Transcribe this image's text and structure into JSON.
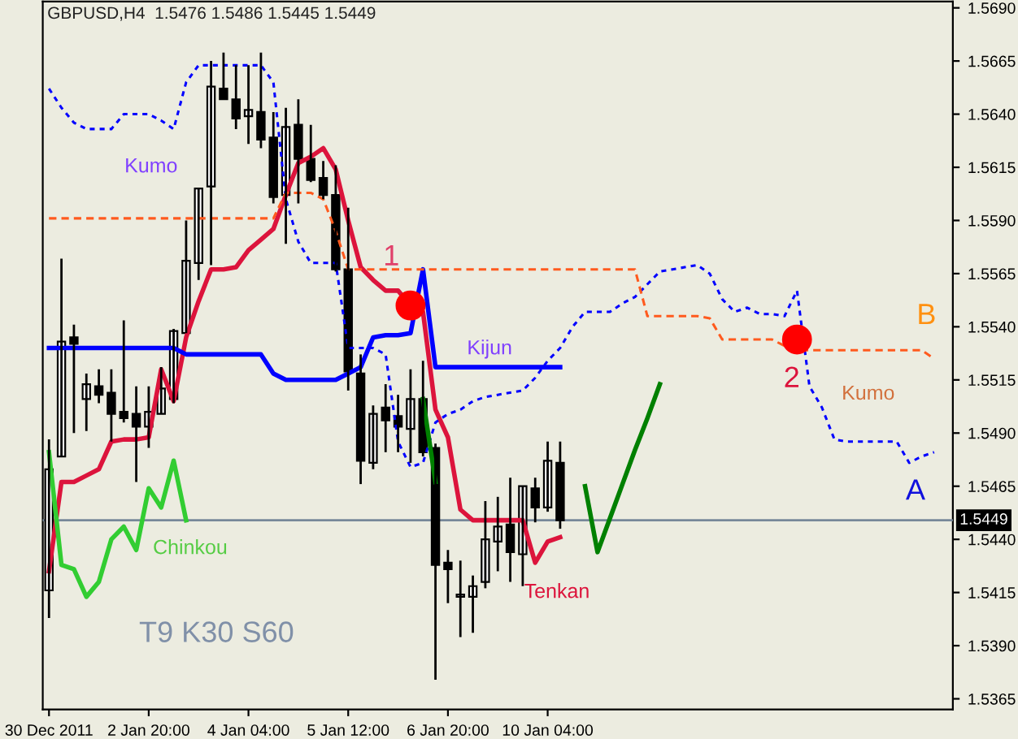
{
  "chart_data": {
    "type": "candlestick",
    "title": "GBPUSD,H4  1.5476 1.5486 1.5445 1.5449",
    "categories": [
      "30 Dec 2011",
      null,
      null,
      null,
      null,
      null,
      null,
      null,
      "2 Jan 20:00",
      null,
      null,
      null,
      null,
      null,
      null,
      null,
      "4 Jan 04:00",
      null,
      null,
      null,
      null,
      null,
      null,
      null,
      "5 Jan 12:00",
      null,
      null,
      null,
      null,
      null,
      null,
      null,
      "6 Jan 20:00",
      null,
      null,
      null,
      null,
      null,
      null,
      null,
      "10 Jan 04:00",
      null,
      null,
      null,
      null,
      null,
      null,
      null,
      null,
      null,
      null,
      null,
      null,
      null,
      null,
      null,
      null,
      null,
      null,
      null,
      null,
      null,
      null,
      null,
      null,
      null,
      null,
      null,
      null,
      null,
      null,
      null,
      null
    ],
    "ohlc": [
      [
        1.5416,
        1.5487,
        1.5403,
        1.5473
      ],
      [
        1.5479,
        1.5572,
        1.5479,
        1.5533
      ],
      [
        1.5535,
        1.5541,
        1.549,
        1.5532
      ],
      [
        1.5506,
        1.5518,
        1.5491,
        1.5513
      ],
      [
        1.5512,
        1.552,
        1.5504,
        1.5508
      ],
      [
        1.5509,
        1.552,
        1.5486,
        1.5499
      ],
      [
        1.55,
        1.5543,
        1.5495,
        1.5497
      ],
      [
        1.5499,
        1.5512,
        1.5467,
        1.5493
      ],
      [
        1.5493,
        1.5512,
        1.5483,
        1.55
      ],
      [
        1.5499,
        1.5521,
        1.5499,
        1.5511
      ],
      [
        1.5506,
        1.5539,
        1.5504,
        1.5538
      ],
      [
        1.5537,
        1.559,
        1.5537,
        1.5571
      ],
      [
        1.557,
        1.5605,
        1.5562,
        1.5605
      ],
      [
        1.5606,
        1.5665,
        1.5569,
        1.5653
      ],
      [
        1.5652,
        1.5669,
        1.5647,
        1.5647
      ],
      [
        1.5647,
        1.5663,
        1.5633,
        1.5638
      ],
      [
        1.5639,
        1.5663,
        1.5626,
        1.5642
      ],
      [
        1.5641,
        1.5669,
        1.5624,
        1.5628
      ],
      [
        1.5629,
        1.5641,
        1.5598,
        1.5601
      ],
      [
        1.5602,
        1.5643,
        1.5579,
        1.5634
      ],
      [
        1.5635,
        1.5647,
        1.5598,
        1.5619
      ],
      [
        1.5619,
        1.5635,
        1.5608,
        1.5609
      ],
      [
        1.561,
        1.5618,
        1.56,
        1.5602
      ],
      [
        1.5602,
        1.5616,
        1.5566,
        1.5567
      ],
      [
        1.5567,
        1.5596,
        1.551,
        1.5519
      ],
      [
        1.5518,
        1.5527,
        1.5466,
        1.5477
      ],
      [
        1.5476,
        1.5503,
        1.5473,
        1.5499
      ],
      [
        1.5502,
        1.5513,
        1.5481,
        1.5496
      ],
      [
        1.5498,
        1.5508,
        1.5481,
        1.5493
      ],
      [
        1.5492,
        1.552,
        1.5476,
        1.5506
      ],
      [
        1.5506,
        1.5524,
        1.5479,
        1.5481
      ],
      [
        1.5483,
        1.5485,
        1.5374,
        1.5428
      ],
      [
        1.5429,
        1.5435,
        1.541,
        1.5426
      ],
      [
        1.5413,
        1.543,
        1.5394,
        1.5414
      ],
      [
        1.5413,
        1.5423,
        1.5396,
        1.5418
      ],
      [
        1.542,
        1.5458,
        1.5417,
        1.544
      ],
      [
        1.5439,
        1.546,
        1.5425,
        1.5446
      ],
      [
        1.5447,
        1.5469,
        1.542,
        1.5434
      ],
      [
        1.5433,
        1.5465,
        1.5418,
        1.5465
      ],
      [
        1.5464,
        1.5469,
        1.5448,
        1.5455
      ],
      [
        1.5455,
        1.5486,
        1.5453,
        1.5477
      ],
      [
        1.5476,
        1.5486,
        1.5445,
        1.5449
      ],
      null,
      null,
      null,
      null,
      null,
      null,
      null,
      null,
      null,
      null,
      null,
      null,
      null,
      null,
      null,
      null,
      null,
      null,
      null,
      null,
      null,
      null,
      null,
      null,
      null,
      null,
      null,
      null,
      null,
      null,
      null
    ],
    "series": [
      {
        "type": "line",
        "color": "#dc143c",
        "values": [
          1.5425,
          1.5467,
          1.5467,
          1.547,
          1.5473,
          1.5486,
          1.5487,
          1.5487,
          1.5488,
          1.552,
          1.5505,
          1.5535,
          1.5552,
          1.5567,
          1.5567,
          1.5568,
          1.5576,
          1.5581,
          1.5586,
          1.5602,
          1.5617,
          1.562,
          1.5624,
          1.5614,
          1.559,
          1.5568,
          1.5562,
          1.5557,
          1.5557,
          1.555,
          1.5547,
          1.5501,
          1.5488,
          1.5454,
          1.5449,
          1.5449,
          1.5449,
          1.5449,
          1.5449,
          1.5429,
          1.5439,
          1.5441,
          null,
          null,
          null,
          null,
          null,
          null,
          null,
          null,
          null,
          null,
          null,
          null,
          null,
          null,
          null,
          null,
          null,
          null,
          null,
          null,
          null,
          null,
          null,
          null,
          null,
          null,
          null,
          null,
          null,
          null,
          null
        ]
      },
      {
        "type": "line",
        "color": "#0000ff",
        "values": [
          1.553,
          1.553,
          1.553,
          1.553,
          1.553,
          1.553,
          1.553,
          1.553,
          1.553,
          1.553,
          1.553,
          1.5527,
          1.5527,
          1.5527,
          1.5527,
          1.5527,
          1.5527,
          1.5527,
          1.5518,
          1.5515,
          1.5515,
          1.5515,
          1.5515,
          1.5515,
          1.5518,
          1.5521,
          1.5535,
          1.5536,
          1.5536,
          1.5537,
          1.5567,
          1.5521,
          1.5521,
          1.5521,
          1.5521,
          1.5521,
          1.5521,
          1.5521,
          1.5521,
          1.5521,
          1.5521,
          1.5521,
          null,
          null,
          null,
          null,
          null,
          null,
          null,
          null,
          null,
          null,
          null,
          null,
          null,
          null,
          null,
          null,
          null,
          null,
          null,
          null,
          null,
          null,
          null,
          null,
          null,
          null,
          null,
          null,
          null,
          null,
          null
        ]
      },
      {
        "type": "line",
        "color": "#32cd32",
        "values": [
          1.5481,
          1.5428,
          1.5426,
          1.5413,
          1.542,
          1.544,
          1.5446,
          1.5435,
          1.5464,
          1.5455,
          1.5477,
          1.5449,
          null,
          null,
          null,
          null,
          null,
          null,
          null,
          null,
          null,
          null,
          null,
          null,
          null,
          null,
          null,
          null,
          null,
          null,
          null,
          null,
          null,
          null,
          null,
          null,
          null,
          null,
          null,
          null,
          null,
          null,
          null,
          null,
          null,
          null,
          null,
          null,
          null,
          null,
          null,
          null,
          null,
          null,
          null,
          null,
          null,
          null,
          null,
          null,
          null,
          null,
          null,
          null,
          null,
          null,
          null,
          null,
          null,
          null,
          null,
          null,
          null
        ]
      },
      {
        "type": "line",
        "color": "#0000ff",
        "line_style": "dotted",
        "values": [
          1.5652,
          1.5643,
          1.5636,
          1.5633,
          1.5633,
          1.5633,
          1.564,
          1.564,
          1.564,
          1.5637,
          1.5633,
          1.5655,
          1.5663,
          1.5663,
          1.5663,
          1.5663,
          1.5663,
          1.5663,
          1.5655,
          1.56,
          1.558,
          1.557,
          1.557,
          1.557,
          1.553,
          1.553,
          1.553,
          1.5527,
          1.5486,
          1.5474,
          1.5476,
          1.5495,
          1.5499,
          1.5501,
          1.5505,
          1.5507,
          1.5508,
          1.5509,
          1.551,
          1.5516,
          1.5524,
          1.553,
          1.554,
          1.5547,
          1.5547,
          1.5547,
          1.5551,
          1.5554,
          1.556,
          1.5566,
          1.5567,
          1.5568,
          1.5569,
          1.5565,
          1.5553,
          1.5547,
          1.5549,
          1.5546,
          1.5546,
          1.5545,
          1.5557,
          1.5512,
          1.5502,
          1.5487,
          1.5486,
          1.5486,
          1.5486,
          1.5486,
          1.5486,
          1.5476,
          1.5479,
          1.5481,
          null
        ]
      },
      {
        "type": "line",
        "color": "#ff5a1e",
        "line_style": "dashed",
        "values": [
          1.5591,
          1.5591,
          1.5591,
          1.5591,
          1.5591,
          1.5591,
          1.5591,
          1.5591,
          1.5591,
          1.5591,
          1.5591,
          1.5591,
          1.5591,
          1.5591,
          1.5591,
          1.5591,
          1.5591,
          1.5591,
          1.5591,
          1.5603,
          1.5603,
          1.5603,
          1.56,
          1.5585,
          1.5567,
          1.5567,
          1.5567,
          1.5567,
          1.5567,
          1.5567,
          1.5567,
          1.5567,
          1.5567,
          1.5567,
          1.5567,
          1.5567,
          1.5567,
          1.5567,
          1.5567,
          1.5567,
          1.5567,
          1.5567,
          1.5567,
          1.5567,
          1.5567,
          1.5567,
          1.5567,
          1.5567,
          1.5545,
          1.5545,
          1.5545,
          1.5545,
          1.5545,
          1.5544,
          1.5534,
          1.5534,
          1.5534,
          1.5534,
          1.5534,
          1.5531,
          1.5529,
          1.5529,
          1.5529,
          1.5529,
          1.5529,
          1.5529,
          1.5529,
          1.5529,
          1.5529,
          1.5529,
          1.5529,
          1.5525,
          null
        ]
      },
      {
        "type": "line",
        "color": "#008000",
        "values": [
          null,
          null,
          null,
          null,
          null,
          null,
          null,
          null,
          null,
          null,
          null,
          null,
          null,
          null,
          null,
          null,
          null,
          null,
          null,
          null,
          null,
          null,
          null,
          null,
          null,
          null,
          null,
          null,
          null,
          null,
          null,
          null,
          null,
          null,
          null,
          null,
          null,
          null,
          null,
          null,
          null,
          null,
          null,
          1.5465,
          1.5434,
          1.545,
          1.5466,
          1.5482,
          1.5497,
          1.5513,
          null,
          null,
          null,
          null,
          null,
          null,
          null,
          null,
          null,
          null,
          null,
          null,
          null,
          null,
          null,
          null,
          null,
          null,
          null,
          null,
          null,
          null,
          null
        ]
      },
      {
        "type": "line",
        "color": "#008000",
        "values": [
          null,
          null,
          null,
          null,
          null,
          null,
          null,
          null,
          null,
          null,
          null,
          null,
          null,
          null,
          null,
          null,
          null,
          null,
          null,
          null,
          null,
          null,
          null,
          null,
          null,
          null,
          null,
          null,
          null,
          null,
          1.5506,
          1.5467,
          null,
          null,
          null,
          null,
          null,
          null,
          null,
          null,
          null,
          null,
          null,
          null,
          null,
          null,
          null,
          null,
          null,
          null,
          null,
          null,
          null,
          null,
          null,
          null,
          null,
          null,
          null,
          null,
          null,
          null,
          null,
          null,
          null,
          null,
          null,
          null,
          null,
          null,
          null,
          null,
          null
        ]
      },
      {
        "type": "scatter",
        "color": "#ff0000",
        "marker": "circle",
        "values": [
          null,
          null,
          null,
          null,
          null,
          null,
          null,
          null,
          null,
          null,
          null,
          null,
          null,
          null,
          null,
          null,
          null,
          null,
          null,
          null,
          null,
          null,
          null,
          null,
          null,
          null,
          null,
          null,
          null,
          1.555,
          null,
          null,
          null,
          null,
          null,
          null,
          null,
          null,
          null,
          null,
          null,
          null,
          null,
          null,
          null,
          null,
          null,
          null,
          null,
          null,
          null,
          null,
          null,
          null,
          null,
          null,
          null,
          null,
          null,
          null,
          1.5534,
          null,
          null,
          null,
          null,
          null,
          null,
          null,
          null,
          null,
          null,
          null,
          null
        ]
      }
    ],
    "annotations": [
      "Kumo",
      "Kijun",
      "Tenkan",
      "Chinkou",
      "Kumo",
      "A",
      "B",
      "1",
      "2",
      "T9 K30 S60"
    ],
    "ref_lines": [
      {
        "axis": "y",
        "value": 1.5449,
        "label": "1.5449",
        "color": "#778899"
      }
    ],
    "ylim": [
      1.536,
      1.5693
    ],
    "yticks": [
      {
        "value": 1.569,
        "label": "1.5690"
      },
      1.5665,
      {
        "value": 1.564,
        "label": "1.5640"
      },
      1.5615,
      {
        "value": 1.559,
        "label": "1.5590"
      },
      1.5565,
      {
        "value": 1.554,
        "label": "1.5540"
      },
      1.5515,
      {
        "value": 1.549,
        "label": "1.5490"
      },
      1.5465,
      {
        "value": 1.544,
        "label": "1.5440"
      },
      1.5415,
      {
        "value": 1.539,
        "label": "1.5390"
      },
      1.5365
    ],
    "grid": false,
    "legend": false
  }
}
